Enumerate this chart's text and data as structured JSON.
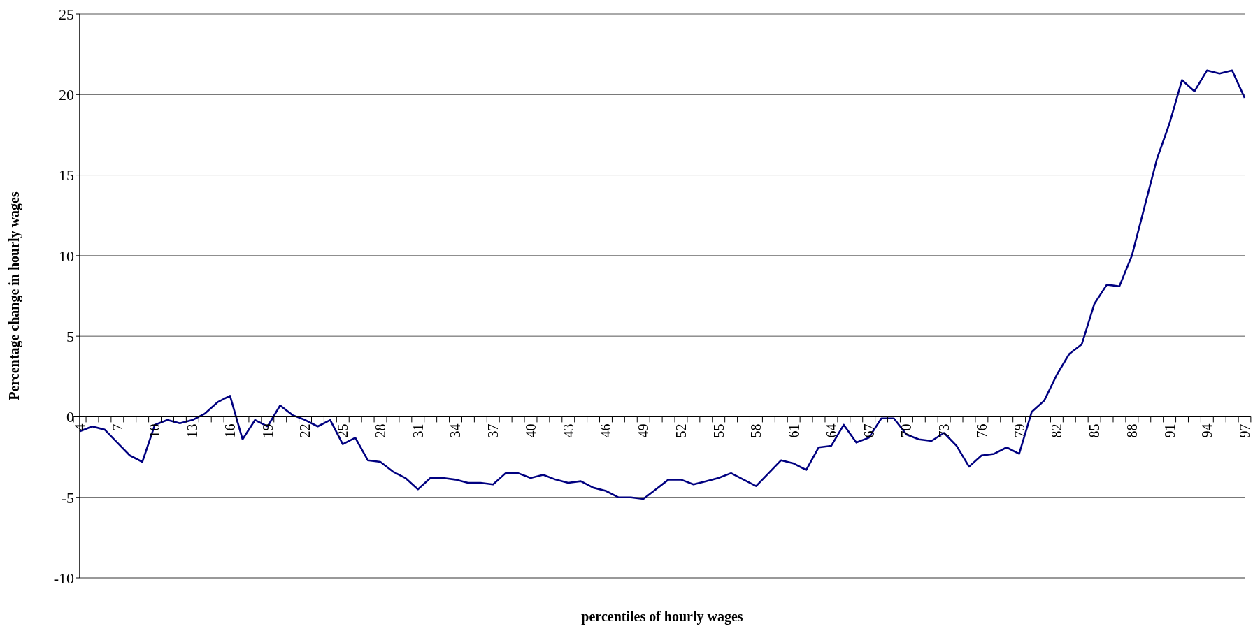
{
  "chart_data": {
    "type": "line",
    "xlabel": "percentiles of hourly wages",
    "ylabel": "Percentage change in hourly wages",
    "categories": [
      "4",
      null,
      null,
      "7",
      null,
      null,
      "10",
      null,
      null,
      "13",
      null,
      null,
      "16",
      null,
      null,
      "19",
      null,
      null,
      "22",
      null,
      null,
      "25",
      null,
      null,
      "28",
      null,
      null,
      "31",
      null,
      null,
      "34",
      null,
      null,
      "37",
      null,
      null,
      "40",
      null,
      null,
      "43",
      null,
      null,
      "46",
      null,
      null,
      "49",
      null,
      null,
      "52",
      null,
      null,
      "55",
      null,
      null,
      "58",
      null,
      null,
      "61",
      null,
      null,
      "64",
      null,
      null,
      "67",
      null,
      null,
      "70",
      null,
      null,
      "73",
      null,
      null,
      "76",
      null,
      null,
      "79",
      null,
      null,
      "82",
      null,
      null,
      "85",
      null,
      null,
      "88",
      null,
      null,
      "91",
      null,
      null,
      "94",
      null,
      null,
      "97"
    ],
    "series": [
      {
        "color": "#000080",
        "values": [
          -0.9,
          -0.6,
          -0.8,
          -1.6,
          -2.4,
          -2.8,
          -0.5,
          -0.2,
          -0.4,
          -0.2,
          0.2,
          0.9,
          1.3,
          -1.4,
          -0.2,
          -0.6,
          0.7,
          0.1,
          -0.2,
          -0.6,
          -0.2,
          -1.7,
          -1.3,
          -2.7,
          -2.8,
          -3.4,
          -3.8,
          -4.5,
          -3.8,
          -3.8,
          -3.9,
          -4.1,
          -4.1,
          -4.2,
          -3.5,
          -3.5,
          -3.8,
          -3.6,
          -3.9,
          -4.1,
          -4.0,
          -4.4,
          -4.6,
          -5.0,
          -5.0,
          -5.1,
          -4.5,
          -3.9,
          -3.9,
          -4.2,
          -4.0,
          -3.8,
          -3.5,
          -3.9,
          -4.3,
          -3.5,
          -2.7,
          -2.9,
          -3.3,
          -1.9,
          -1.8,
          -0.5,
          -1.6,
          -1.3,
          -0.1,
          -0.1,
          -1.1,
          -1.4,
          -1.5,
          -1.0,
          -1.8,
          -3.1,
          -2.4,
          -2.3,
          -1.9,
          -2.3,
          0.3,
          1.0,
          2.6,
          3.9,
          4.5,
          7.0,
          8.2,
          8.1,
          10.0,
          13.0,
          16.0,
          18.2,
          20.9,
          20.2,
          21.5,
          21.3,
          21.5,
          19.8
        ]
      }
    ],
    "ylim": [
      -10,
      25
    ],
    "yticks": [
      -10,
      -5,
      0,
      5,
      10,
      15,
      20,
      25
    ],
    "grid": "y",
    "legend": false,
    "marker": "none",
    "line_style": "solid"
  }
}
